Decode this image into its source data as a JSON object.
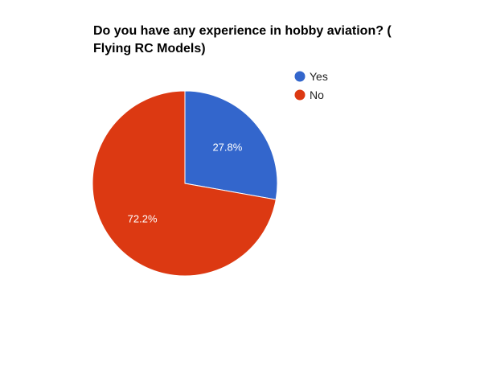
{
  "chart_data": {
    "type": "pie",
    "title_lines": [
      "Do you have any experience in hobby aviation? (",
      "Flying RC Models)"
    ],
    "categories": [
      "Yes",
      "No"
    ],
    "values": [
      27.8,
      72.2
    ],
    "labels": [
      "27.8%",
      "72.2%"
    ],
    "colors": [
      "#3366cc",
      "#dc3912"
    ],
    "legend_position": "right"
  }
}
